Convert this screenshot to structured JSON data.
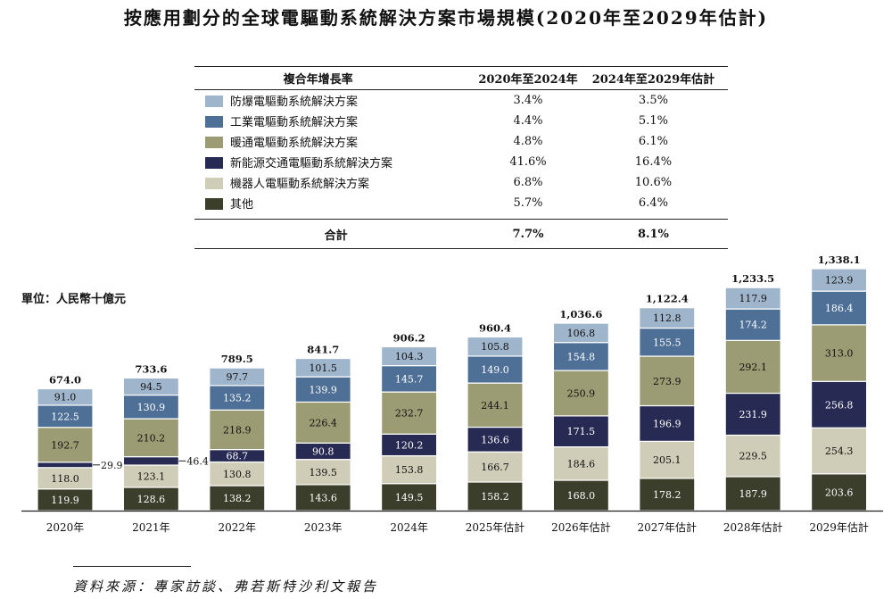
{
  "title": "按應用劃分的全球電驅動系統解決方案市場規模(2020年至2029年估計)",
  "cagr_table": {
    "header": {
      "name": "複合年增長率",
      "col_a": "2020年至2024年",
      "col_b": "2024年至2029年估計"
    },
    "rows": [
      {
        "name": "防爆電驅動系統解決方案",
        "a": "3.4%",
        "b": "3.5%",
        "color": "#9fb5cc"
      },
      {
        "name": "工業電驅動系統解決方案",
        "a": "4.4%",
        "b": "5.1%",
        "color": "#4e6f96"
      },
      {
        "name": "暖通電驅動系統解決方案",
        "a": "4.8%",
        "b": "6.1%",
        "color": "#9b9b74"
      },
      {
        "name": "新能源交通電驅動系統解決方案",
        "a": "41.6%",
        "b": "16.4%",
        "color": "#272a52"
      },
      {
        "name": "機器人電驅動系統解決方案",
        "a": "6.8%",
        "b": "10.6%",
        "color": "#cfcdb8"
      },
      {
        "name": "其他",
        "a": "5.7%",
        "b": "6.4%",
        "color": "#3a3e2a"
      }
    ],
    "total": {
      "name": "合計",
      "a": "7.7%",
      "b": "8.1%"
    }
  },
  "unit": "單位：人民幣十億元",
  "chart_data": {
    "type": "bar",
    "stacked": true,
    "categories": [
      "2020年",
      "2021年",
      "2022年",
      "2023年",
      "2024年",
      "2025年估計",
      "2026年估計",
      "2027年估計",
      "2028年估計",
      "2029年估計"
    ],
    "series": [
      {
        "name": "其他",
        "color": "#3a3e2a",
        "label_color": "#ffffff",
        "values": [
          119.9,
          128.6,
          138.2,
          143.6,
          149.5,
          158.2,
          168.0,
          178.2,
          187.9,
          203.6
        ]
      },
      {
        "name": "機器人電驅動系統解決方案",
        "color": "#cfcdb8",
        "label_color": "#111111",
        "values": [
          118.0,
          123.1,
          130.8,
          139.5,
          153.8,
          166.7,
          184.6,
          205.1,
          229.5,
          254.3
        ]
      },
      {
        "name": "新能源交通電驅動系統解決方案",
        "color": "#272a52",
        "label_color": "#ffffff",
        "values": [
          29.9,
          46.4,
          68.7,
          90.8,
          120.2,
          136.6,
          171.5,
          196.9,
          231.9,
          256.8
        ]
      },
      {
        "name": "暖通電驅動系統解決方案",
        "color": "#9b9b74",
        "label_color": "#111111",
        "values": [
          192.7,
          210.2,
          218.9,
          226.4,
          232.7,
          244.1,
          250.9,
          273.9,
          292.1,
          313.0
        ]
      },
      {
        "name": "工業電驅動系統解決方案",
        "color": "#4e6f96",
        "label_color": "#ffffff",
        "values": [
          122.5,
          130.9,
          135.2,
          139.9,
          145.7,
          149.0,
          154.8,
          155.5,
          174.2,
          186.4
        ]
      },
      {
        "name": "防爆電驅動系統解決方案",
        "color": "#9fb5cc",
        "label_color": "#111111",
        "values": [
          91.0,
          94.5,
          97.7,
          101.5,
          104.3,
          105.8,
          106.8,
          112.8,
          117.9,
          123.9
        ]
      }
    ],
    "totals": [
      "674.0",
      "733.6",
      "789.5",
      "841.7",
      "906.2",
      "960.4",
      "1,036.6",
      "1,122.4",
      "1,233.5",
      "1,338.1"
    ],
    "segment_labels": [
      [
        "119.9",
        "118.0",
        "29.9",
        "192.7",
        "122.5",
        "91.0"
      ],
      [
        "128.6",
        "123.1",
        "46.4",
        "210.2",
        "130.9",
        "94.5"
      ],
      [
        "138.2",
        "130.8",
        "68.7",
        "218.9",
        "135.2",
        "97.7"
      ],
      [
        "143.6",
        "139.5",
        "90.8",
        "226.4",
        "139.9",
        "101.5"
      ],
      [
        "149.5",
        "153.8",
        "120.2",
        "232.7",
        "145.7",
        "104.3"
      ],
      [
        "158.2",
        "166.7",
        "136.6",
        "244.1",
        "149.0",
        "105.8"
      ],
      [
        "168.0",
        "184.6",
        "171.5",
        "250.9",
        "154.8",
        "106.8"
      ],
      [
        "178.2",
        "205.1",
        "196.9",
        "273.9",
        "155.5",
        "112.8"
      ],
      [
        "187.9",
        "229.5",
        "231.9",
        "292.1",
        "174.2",
        "117.9"
      ],
      [
        "203.6",
        "254.3",
        "256.8",
        "313.0",
        "186.4",
        "123.9"
      ]
    ],
    "outside_labels": [
      [
        0,
        2
      ],
      [
        1,
        2
      ]
    ],
    "ylim": [
      0,
      1338.1
    ]
  },
  "source": "資料來源：專家訪談、弗若斯特沙利文報告"
}
